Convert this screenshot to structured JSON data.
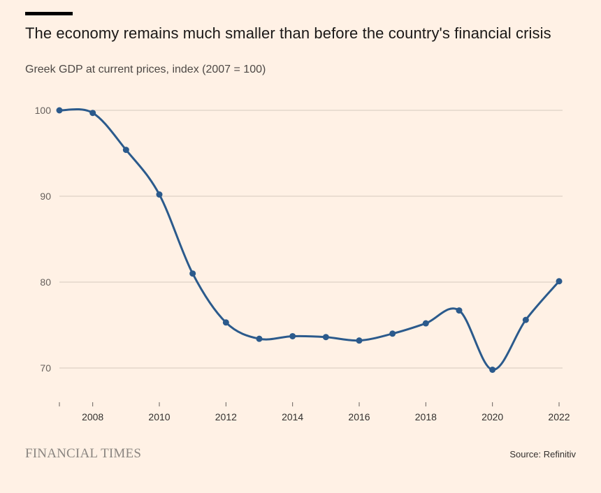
{
  "header": {
    "title": "The economy remains much smaller than before the country's financial crisis",
    "subtitle": "Greek GDP at current prices, index (2007 = 100)"
  },
  "footer": {
    "logo": "FINANCIAL TIMES",
    "source": "Source: Refinitiv"
  },
  "colors": {
    "line": "#2b5a8c",
    "grid": "#d6c9bd",
    "background": "#fff1e5"
  },
  "chart_data": {
    "type": "line",
    "title": "The economy remains much smaller than before the country's financial crisis",
    "subtitle": "Greek GDP at current prices, index (2007 = 100)",
    "x": [
      2007,
      2008,
      2009,
      2010,
      2011,
      2012,
      2013,
      2014,
      2015,
      2016,
      2017,
      2018,
      2019,
      2020,
      2021,
      2022
    ],
    "values": [
      100,
      99.7,
      95.4,
      90.2,
      81.0,
      75.3,
      73.4,
      73.7,
      73.6,
      73.2,
      74.0,
      75.2,
      76.7,
      69.8,
      75.6,
      80.1
    ],
    "xticks": [
      "2008",
      "2010",
      "2012",
      "2014",
      "2016",
      "2018",
      "2020",
      "2022"
    ],
    "yticks": [
      "100",
      "90",
      "80",
      "70"
    ],
    "xlim": [
      2007,
      2022
    ],
    "ylim": [
      66,
      100
    ],
    "grid": "horizontal",
    "legend": "none",
    "source": "Source: Refinitiv"
  }
}
